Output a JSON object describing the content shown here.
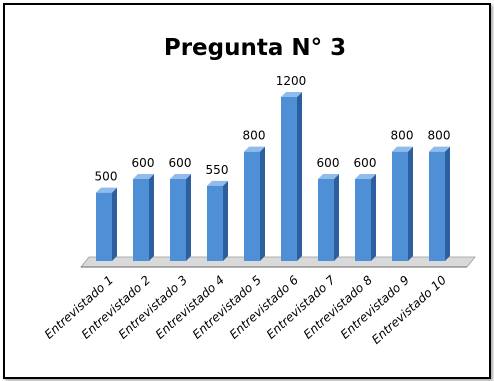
{
  "chart_data": {
    "type": "bar",
    "title": "Pregunta N° 3",
    "categories": [
      "Entrevistado 1",
      "Entrevistado 2",
      "Entrevistado 3",
      "Entrevistado 4",
      "Entrevistado 5",
      "Entrevistado 6",
      "Entrevistado 7",
      "Entrevistado 8",
      "Entrevistado 9",
      "Entrevistado 10"
    ],
    "values": [
      500,
      600,
      600,
      550,
      800,
      1200,
      600,
      600,
      800,
      800
    ],
    "data_labels": [
      "500",
      "600",
      "600",
      "550",
      "800",
      "1200",
      "600",
      "600",
      "800",
      "800"
    ],
    "xlabel": "",
    "ylabel": "",
    "ylim": [
      0,
      1200
    ],
    "grid": false,
    "legend": "none",
    "style": "3d-column",
    "colors": {
      "bar": "#4f8fd6",
      "bar_side": "#2c5f9e",
      "bar_top": "#8fbcec",
      "floor": "#d9d9d9"
    }
  }
}
